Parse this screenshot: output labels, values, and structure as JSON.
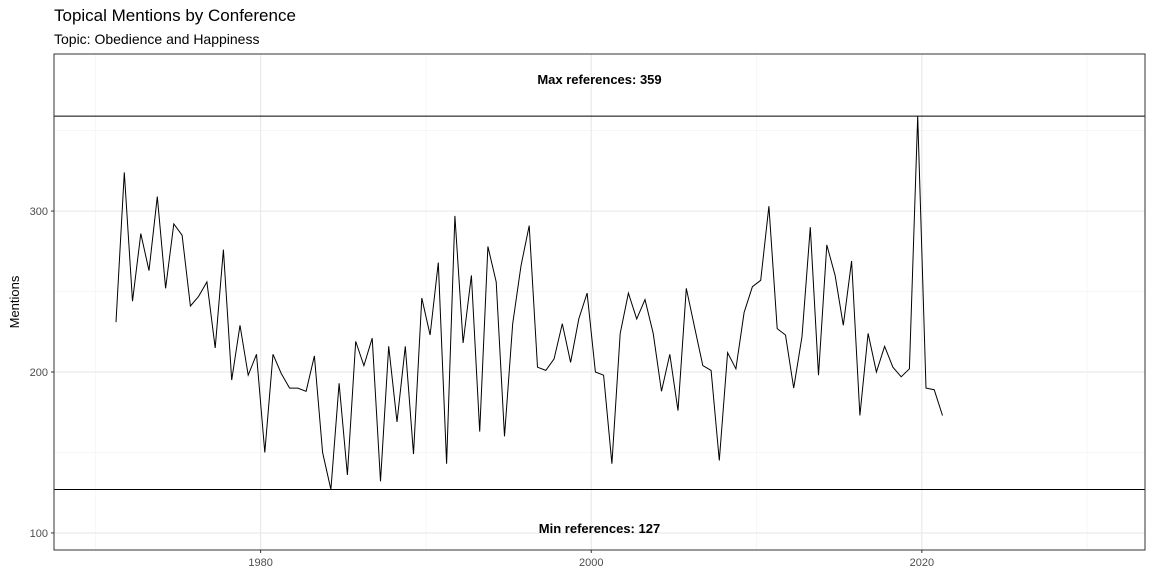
{
  "chart_data": {
    "type": "line",
    "title": "Topical Mentions by Conference",
    "subtitle": "Topic: Obedience and Happiness",
    "xlabel": "",
    "ylabel": "Mentions",
    "xlim": [
      1967.5,
      2033.5
    ],
    "ylim": [
      89.4,
      397.6
    ],
    "x_ticks": [
      1980,
      2000,
      2020
    ],
    "y_ticks": [
      100,
      200,
      300
    ],
    "grid": true,
    "series": [
      {
        "x": [
          1971.25,
          1971.75,
          1972.25,
          1972.75,
          1973.25,
          1973.75,
          1974.25,
          1974.75,
          1975.25,
          1975.75,
          1976.25,
          1976.75,
          1977.25,
          1977.75,
          1978.25,
          1978.75,
          1979.25,
          1979.75,
          1980.25,
          1980.75,
          1981.25,
          1981.75,
          1982.25,
          1982.75,
          1983.25,
          1983.75,
          1984.25,
          1984.75,
          1985.25,
          1985.75,
          1986.25,
          1986.75,
          1987.25,
          1987.75,
          1988.25,
          1988.75,
          1989.25,
          1989.75,
          1990.25,
          1990.75,
          1991.25,
          1991.75,
          1992.25,
          1992.75,
          1993.25,
          1993.75,
          1994.25,
          1994.75,
          1995.25,
          1995.75,
          1996.25,
          1996.75,
          1997.25,
          1997.75,
          1998.25,
          1998.75,
          1999.25,
          1999.75,
          2000.25,
          2000.75,
          2001.25,
          2001.75,
          2002.25,
          2002.75,
          2003.25,
          2003.75,
          2004.25,
          2004.75,
          2005.25,
          2005.75,
          2006.25,
          2006.75,
          2007.25,
          2007.75,
          2008.25,
          2008.75,
          2009.25,
          2009.75,
          2010.25,
          2010.75,
          2011.25,
          2011.75,
          2012.25,
          2012.75,
          2013.25,
          2013.75,
          2014.25,
          2014.75,
          2015.25,
          2015.75,
          2016.25,
          2016.75,
          2017.25,
          2017.75,
          2018.25,
          2018.75,
          2019.25,
          2019.75,
          2020.25,
          2020.75,
          2021.25
        ],
        "y": [
          231,
          324,
          244,
          286,
          263,
          309,
          252,
          292,
          285,
          241,
          247,
          256,
          215,
          276,
          195,
          229,
          198,
          211,
          150,
          211,
          199,
          190,
          190,
          188,
          210,
          150,
          127,
          193,
          136,
          219,
          204,
          221,
          132,
          216,
          169,
          216,
          149,
          246,
          223,
          268,
          143,
          297,
          218,
          260,
          163,
          278,
          256,
          160,
          230,
          266,
          291,
          203,
          201,
          208,
          230,
          206,
          233,
          249,
          200,
          198,
          143,
          224,
          249,
          233,
          245,
          224,
          188,
          211,
          176,
          252,
          228,
          204,
          201,
          145,
          212,
          202,
          237,
          253,
          257,
          303,
          227,
          223,
          190,
          222,
          290,
          198,
          279,
          260,
          229,
          269,
          173,
          224,
          200,
          216,
          203,
          197,
          202,
          359,
          190,
          189,
          173
        ]
      }
    ],
    "annotations": [
      {
        "label": "Max references: 359",
        "value": 359
      },
      {
        "label": "Min references: 127",
        "value": 127
      }
    ]
  }
}
